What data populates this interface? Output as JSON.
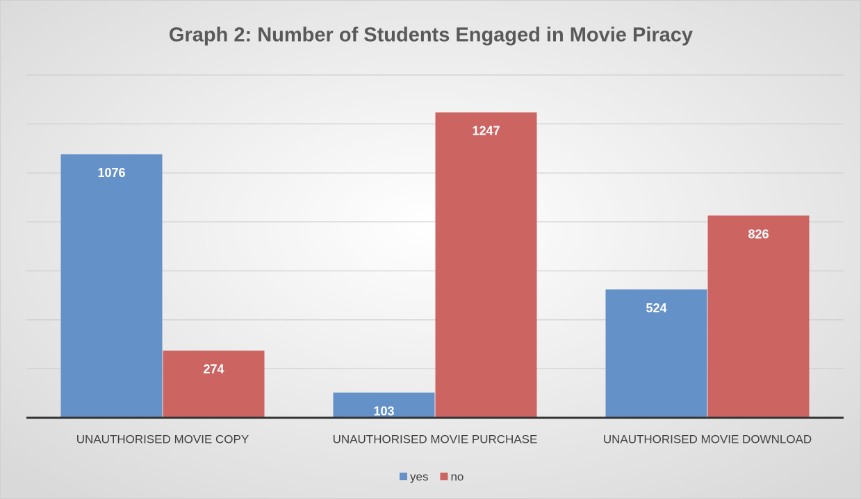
{
  "chart_data": {
    "type": "bar",
    "title": "Graph 2: Number of Students Engaged in Movie Piracy",
    "categories": [
      "UNAUTHORISED MOVIE COPY",
      "UNAUTHORISED MOVIE PURCHASE",
      "UNAUTHORISED MOVIE DOWNLOAD"
    ],
    "series": [
      {
        "name": "yes",
        "color": "#6591c9",
        "values": [
          1076,
          103,
          524
        ]
      },
      {
        "name": "no",
        "color": "#cc6462",
        "values": [
          274,
          1247,
          826
        ]
      }
    ],
    "ylim": [
      0,
      1400
    ],
    "yticks": [
      0,
      200,
      400,
      600,
      800,
      1000,
      1200,
      1400
    ],
    "grid": true,
    "legend": "bottom"
  }
}
